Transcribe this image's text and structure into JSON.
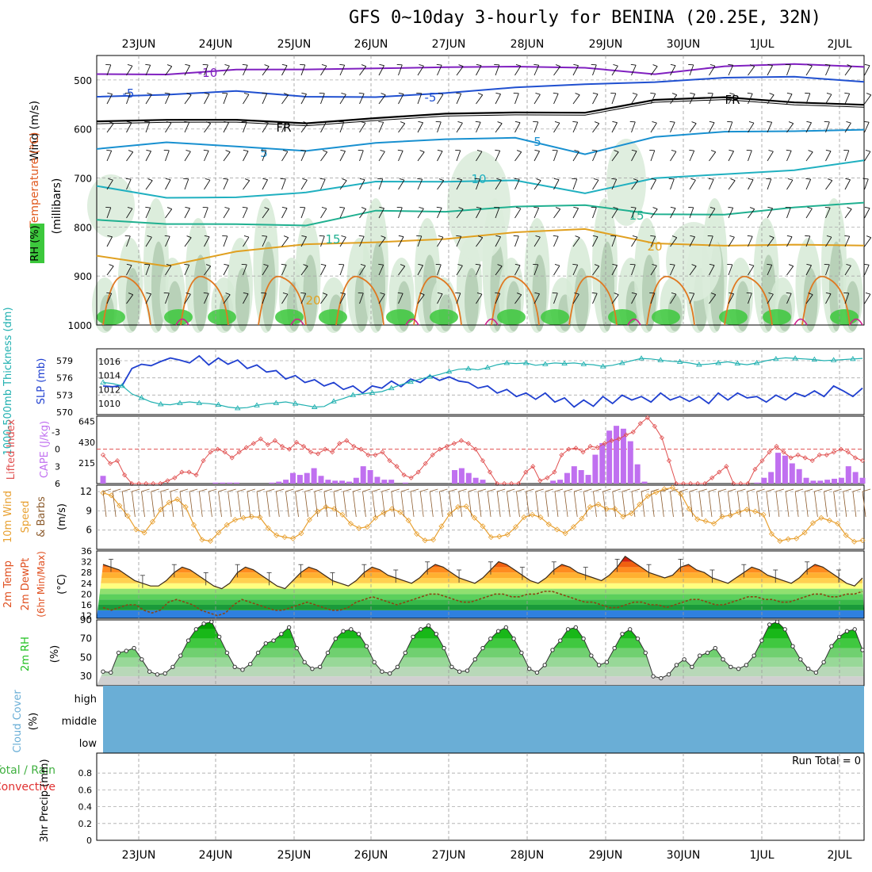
{
  "title": "GFS 0~10day 3-hourly for BENINA (20.25E, 32N)",
  "dates": [
    "23JUN",
    "24JUN",
    "25JUN",
    "26JUN",
    "27JUN",
    "28JUN",
    "29JUN",
    "30JUN",
    "1JUL",
    "2JUL"
  ],
  "run_total_label": "Run Total = 0",
  "colors": {
    "rh_fill": "#3cc83c",
    "t_contour": "#e08020",
    "cape": "#c070f0",
    "lifted": "#e05050",
    "slp": "#2040d0",
    "thickness": "#20b0b0",
    "wind10": "#e8a030",
    "barb10": "#8b5a2b",
    "rh2m": "#20c020",
    "cloud": "#6aaed6",
    "cross_temp": "#8b4513",
    "dewpt": "#8b4513"
  },
  "chart_data": [
    {
      "type": "heatmap",
      "panel": "cross-section",
      "ylabel_parts": [
        "Wind (m/s)",
        "Temperature (°C)",
        "RH (%)"
      ],
      "yunit": "(millibars)",
      "y_ticks": [
        500,
        600,
        700,
        800,
        900,
        1000
      ],
      "ylim": [
        450,
        1000
      ],
      "contours": [
        {
          "label": "-10",
          "color": "#8020c0",
          "pressure": [
            488,
            484,
            480,
            483,
            474,
            470,
            476,
            478,
            484,
            470,
            472,
            474
          ]
        },
        {
          "label": "-5",
          "color": "#2050d0",
          "pressure": [
            530,
            528,
            527,
            535,
            530,
            527,
            520,
            507,
            500,
            498,
            497,
            500
          ]
        },
        {
          "label": "FR",
          "color": "#000000",
          "pressure": [
            580,
            584,
            585,
            585,
            575,
            573,
            568,
            562,
            540,
            540,
            545,
            546
          ]
        },
        {
          "label": "5",
          "color": "#1890d0",
          "pressure": [
            640,
            632,
            635,
            640,
            630,
            625,
            615,
            648,
            620,
            608,
            600,
            600
          ]
        },
        {
          "label": "10",
          "color": "#20b0c0",
          "pressure": [
            720,
            743,
            735,
            728,
            712,
            708,
            700,
            732,
            705,
            690,
            680,
            667
          ]
        },
        {
          "label": "15",
          "color": "#20b090",
          "pressure": [
            790,
            792,
            790,
            800,
            770,
            765,
            756,
            760,
            775,
            770,
            760,
            755
          ]
        },
        {
          "label": "20",
          "color": "#e0a020",
          "pressure": [
            860,
            875,
            850,
            840,
            830,
            820,
            813,
            808,
            830,
            835,
            840,
            840
          ]
        }
      ],
      "labels_text": [
        "-10",
        "-5",
        "-5",
        "FR",
        "FR",
        "5",
        "5",
        "10",
        "15",
        "15",
        "20",
        "20"
      ]
    },
    {
      "type": "line",
      "panel": "slp-thickness",
      "ylabel_left": "1000-500mb Thickness (dm)",
      "ylabel_right": "SLP (mb)",
      "left_ticks": [
        570,
        573,
        576,
        579
      ],
      "right_ticks": [
        1010,
        1012,
        1014,
        1016
      ],
      "series": [
        {
          "name": "SLP (mb)",
          "axis": "right",
          "values": [
            1012.5,
            1012.4,
            1012.6,
            1015.0,
            1015.6,
            1015.4,
            1016.0,
            1016.5,
            1016.2,
            1015.8,
            1016.8,
            1015.5,
            1016.5,
            1015.6,
            1016.2,
            1015.0,
            1015.5,
            1014.5,
            1014.7,
            1013.5,
            1014.0,
            1013.0,
            1013.4,
            1012.5,
            1013.0,
            1012.0,
            1012.5,
            1011.5,
            1012.5,
            1012.2,
            1013.2,
            1012.4,
            1013.5,
            1013.0,
            1014.0,
            1013.3,
            1013.8,
            1013.2,
            1013.0,
            1012.2,
            1012.5,
            1011.5,
            1012.0,
            1011.0,
            1011.5,
            1010.6,
            1011.5,
            1010.2,
            1010.8,
            1009.5,
            1010.5,
            1009.6,
            1011.0,
            1010.0,
            1011.2,
            1010.5,
            1011.0,
            1010.2,
            1011.5,
            1010.5,
            1011.0,
            1010.3,
            1011.0,
            1010.0,
            1011.5,
            1010.5,
            1011.5,
            1010.8,
            1011.0,
            1010.2,
            1011.2,
            1010.5,
            1011.5,
            1011.0,
            1011.8,
            1011.0,
            1012.5,
            1011.8,
            1011.0,
            1012.2
          ]
        },
        {
          "name": "1000-500mb Thickness (dm)",
          "axis": "left",
          "values": [
            575.2,
            575.0,
            574.6,
            573.2,
            572.5,
            571.8,
            571.4,
            571.3,
            571.6,
            571.8,
            571.6,
            571.5,
            571.3,
            570.9,
            570.7,
            570.8,
            571.2,
            571.5,
            571.6,
            571.8,
            571.5,
            571.2,
            570.9,
            571.0,
            571.9,
            572.4,
            573.0,
            573.2,
            573.4,
            573.6,
            574.2,
            574.8,
            575.3,
            575.8,
            576.2,
            576.6,
            577.1,
            577.5,
            577.6,
            577.4,
            577.8,
            578.3,
            578.6,
            578.5,
            578.6,
            578.2,
            578.4,
            578.6,
            578.5,
            578.6,
            578.4,
            578.3,
            578.0,
            578.2,
            578.6,
            579.0,
            579.4,
            579.3,
            579.1,
            578.9,
            578.8,
            578.6,
            578.3,
            578.4,
            578.6,
            578.8,
            578.5,
            578.3,
            578.6,
            579.0,
            579.3,
            579.5,
            579.4,
            579.3,
            579.2,
            579.0,
            579.1,
            579.2,
            579.3,
            579.4
          ]
        }
      ]
    },
    {
      "type": "bar",
      "panel": "cape-li",
      "ylabel_left": "Lifted Index",
      "ylabel_right": "CAPE (J/kg)",
      "left_ticks": [
        -3,
        0,
        3,
        6
      ],
      "right_ticks": [
        215,
        430,
        645
      ],
      "series": [
        {
          "name": "CAPE (J/kg)",
          "kind": "bar",
          "values": [
            80,
            0,
            0,
            0,
            0,
            0,
            0,
            0,
            0,
            0,
            0,
            0,
            0,
            0,
            0,
            0,
            10,
            10,
            10,
            10,
            0,
            0,
            0,
            0,
            10,
            20,
            40,
            110,
            90,
            110,
            160,
            80,
            40,
            30,
            30,
            20,
            60,
            180,
            140,
            70,
            40,
            40,
            0,
            10,
            0,
            0,
            0,
            0,
            0,
            0,
            140,
            160,
            110,
            60,
            40,
            0,
            0,
            0,
            0,
            0,
            0,
            0,
            0,
            0,
            30,
            40,
            110,
            180,
            140,
            90,
            300,
            420,
            550,
            600,
            570,
            440,
            200,
            20,
            0,
            0,
            0,
            0,
            0,
            0,
            0,
            0,
            0,
            0,
            0,
            0,
            0,
            0,
            0,
            10,
            60,
            120,
            320,
            290,
            210,
            150,
            60,
            30,
            30,
            40,
            50,
            60,
            180,
            120,
            60
          ]
        },
        {
          "name": "Lifted Index",
          "kind": "line",
          "values": [
            1.0,
            2.5,
            2.0,
            4.5,
            6.0,
            7.0,
            7.5,
            7.0,
            6.5,
            5.5,
            5.0,
            4.0,
            4.0,
            4.5,
            2.0,
            0.5,
            0.0,
            0.5,
            1.5,
            0.5,
            -0.3,
            -1.0,
            -1.8,
            -0.8,
            -1.5,
            -0.5,
            0.0,
            -1.2,
            -0.5,
            0.5,
            0.8,
            0.0,
            0.5,
            -1.0,
            -1.5,
            -0.5,
            0.0,
            1.0,
            1.0,
            0.5,
            2.0,
            3.0,
            4.5,
            5.0,
            4.0,
            2.5,
            1.0,
            0.0,
            -0.5,
            -1.0,
            -1.5,
            -1.0,
            0.0,
            2.0,
            4.0,
            6.0,
            7.0,
            7.5,
            6.5,
            4.0,
            3.0,
            5.5,
            5.0,
            4.0,
            1.0,
            0.0,
            -0.2,
            0.5,
            -0.5,
            -0.3,
            -1.0,
            -1.5,
            -1.8,
            -2.5,
            -3.0,
            -4.5,
            -5.5,
            -4.0,
            -2.0,
            2.0,
            6.0,
            8.0,
            8.5,
            7.5,
            6.5,
            5.0,
            4.0,
            3.0,
            7.0,
            7.0,
            6.0,
            3.5,
            2.0,
            0.5,
            -0.5,
            0.5,
            1.5,
            1.0,
            1.5,
            2.0,
            1.0,
            1.0,
            0.5,
            0.0,
            0.5,
            1.5,
            2.0
          ]
        }
      ]
    },
    {
      "type": "line",
      "panel": "wind10m",
      "ylabel": "10m Wind Speed & Barbs",
      "yunit": "(m/s)",
      "y_ticks": [
        6,
        9,
        12
      ],
      "ylim": [
        3,
        13
      ],
      "series": [
        {
          "name": "10m Wind Speed",
          "values": [
            11.8,
            11.4,
            9.8,
            8.2,
            6.1,
            5.6,
            7.3,
            9.2,
            10.3,
            10.8,
            9.6,
            6.8,
            4.5,
            4.3,
            5.6,
            6.8,
            7.6,
            7.9,
            8.1,
            8.0,
            6.3,
            5.2,
            4.9,
            4.7,
            5.5,
            7.6,
            8.9,
            9.6,
            9.3,
            8.4,
            7.0,
            6.3,
            6.5,
            7.9,
            8.7,
            9.3,
            8.8,
            7.5,
            5.4,
            4.4,
            4.5,
            6.6,
            8.5,
            9.6,
            9.7,
            7.9,
            6.6,
            4.9,
            5.0,
            5.3,
            6.5,
            8.0,
            8.4,
            8.0,
            6.9,
            6.1,
            5.5,
            6.5,
            7.8,
            9.6,
            10.0,
            9.3,
            9.3,
            8.1,
            8.6,
            10.0,
            11.3,
            11.9,
            12.4,
            12.6,
            11.6,
            9.3,
            7.7,
            7.4,
            7.0,
            8.1,
            8.3,
            8.8,
            9.2,
            8.9,
            8.4,
            5.4,
            4.3,
            4.6,
            4.7,
            5.6,
            7.1,
            7.9,
            7.5,
            7.0,
            5.2,
            4.2,
            4.4
          ]
        }
      ]
    },
    {
      "type": "line",
      "panel": "temp2m",
      "ylabel": "2m Temp 2m DewPt (6hr Min/Max)",
      "yunit": "(°C)",
      "y_ticks": [
        12,
        16,
        20,
        24,
        28,
        32,
        36
      ],
      "ylim": [
        11,
        36
      ],
      "series": [
        {
          "name": "2m Temp",
          "values": [
            31,
            30,
            29,
            27,
            25,
            24,
            23,
            23,
            25,
            28,
            30,
            29,
            27,
            25,
            23,
            22,
            24,
            28,
            30,
            29,
            27,
            25,
            23,
            22,
            25,
            28,
            30,
            29,
            27,
            25,
            24,
            23,
            25,
            28,
            30,
            29,
            27,
            26,
            25,
            24,
            26,
            29,
            31,
            30,
            28,
            26,
            25,
            24,
            26,
            29,
            32,
            31,
            29,
            27,
            25,
            24,
            26,
            29,
            31,
            30,
            28,
            27,
            26,
            25,
            27,
            30,
            34,
            32,
            30,
            28,
            27,
            26,
            27,
            30,
            31,
            29,
            28,
            26,
            25,
            24,
            26,
            28,
            30,
            29,
            27,
            26,
            25,
            24,
            26,
            29,
            31,
            30,
            28,
            26,
            24,
            23,
            26
          ]
        },
        {
          "name": "2m DewPt",
          "values": [
            15,
            14,
            15,
            16,
            16,
            14,
            13,
            14,
            17,
            18,
            17,
            16,
            14,
            13,
            12,
            13,
            16,
            18,
            17,
            16,
            15,
            14,
            14,
            15,
            16,
            17,
            16,
            15,
            14,
            14,
            15,
            17,
            18,
            19,
            18,
            17,
            16,
            17,
            18,
            19,
            20,
            20,
            19,
            18,
            17,
            17,
            18,
            19,
            20,
            20,
            19,
            19,
            20,
            20,
            21,
            21,
            20,
            19,
            18,
            17,
            17,
            16,
            15,
            15,
            16,
            17,
            17,
            16,
            16,
            15,
            16,
            17,
            18,
            18,
            17,
            16,
            16,
            17,
            18,
            19,
            19,
            18,
            18,
            17,
            17,
            18,
            19,
            20,
            20,
            19,
            19,
            20,
            20,
            21
          ]
        }
      ]
    },
    {
      "type": "area",
      "panel": "rh2m",
      "ylabel": "2m RH",
      "yunit": "(%)",
      "y_ticks": [
        30,
        50,
        70,
        90
      ],
      "ylim": [
        20,
        90
      ],
      "series": [
        {
          "name": "2m RH",
          "values": [
            35,
            34,
            55,
            57,
            60,
            48,
            35,
            32,
            33,
            40,
            52,
            68,
            80,
            86,
            88,
            72,
            55,
            40,
            37,
            43,
            55,
            65,
            68,
            75,
            82,
            60,
            45,
            38,
            40,
            55,
            70,
            78,
            80,
            75,
            62,
            45,
            35,
            33,
            40,
            55,
            72,
            80,
            84,
            75,
            60,
            40,
            35,
            36,
            48,
            60,
            70,
            78,
            82,
            70,
            55,
            38,
            34,
            42,
            58,
            68,
            80,
            82,
            70,
            52,
            42,
            45,
            60,
            75,
            80,
            70,
            55,
            30,
            28,
            32,
            42,
            48,
            40,
            52,
            55,
            60,
            48,
            40,
            38,
            42,
            52,
            68,
            85,
            88,
            80,
            62,
            48,
            38,
            34,
            45,
            62,
            72,
            78,
            80,
            58
          ]
        }
      ]
    },
    {
      "type": "area",
      "panel": "cloud",
      "ylabel": "Cloud Cover",
      "yunit": "(%)",
      "levels": [
        "high",
        "middle",
        "low"
      ],
      "series": [
        {
          "name": "cloud cover",
          "values": [
            100
          ]
        }
      ]
    },
    {
      "type": "bar",
      "panel": "precip",
      "ylabel_parts": [
        "Total / Rain",
        "Convective"
      ],
      "ylabel": "3hr Precip (mm)",
      "y_ticks": [
        0,
        0.2,
        0.4,
        0.6,
        0.8
      ],
      "ylim": [
        0,
        1.0
      ],
      "series": [
        {
          "name": "Total / Rain",
          "values": []
        },
        {
          "name": "Convective",
          "values": []
        }
      ]
    }
  ]
}
